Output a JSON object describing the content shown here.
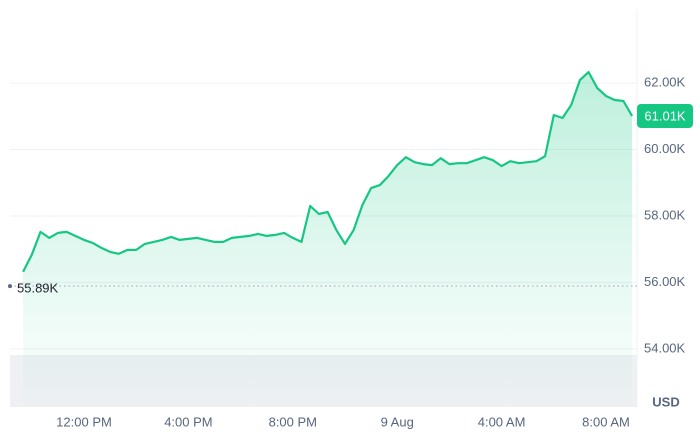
{
  "chart_data": {
    "type": "line",
    "color": "#16c784",
    "unit_label": "USD",
    "categories": [
      null,
      null,
      null,
      null,
      null,
      null,
      null,
      "12:00 PM",
      null,
      null,
      null,
      null,
      null,
      null,
      null,
      null,
      null,
      null,
      null,
      "4:00 PM",
      null,
      null,
      null,
      null,
      null,
      null,
      null,
      null,
      null,
      null,
      null,
      "8:00 PM",
      null,
      null,
      null,
      null,
      null,
      null,
      null,
      null,
      null,
      null,
      null,
      "9 Aug",
      null,
      null,
      null,
      null,
      null,
      null,
      null,
      null,
      null,
      null,
      null,
      "4:00 AM",
      null,
      null,
      null,
      null,
      null,
      null,
      null,
      null,
      null,
      null,
      null,
      "8:00 AM",
      null,
      null,
      null
    ],
    "values": [
      56.32,
      56.83,
      57.52,
      57.34,
      57.49,
      57.52,
      57.4,
      57.28,
      57.19,
      57.04,
      56.92,
      56.86,
      56.98,
      56.98,
      57.16,
      57.22,
      57.28,
      57.37,
      57.28,
      57.31,
      57.34,
      57.28,
      57.22,
      57.22,
      57.34,
      57.37,
      57.4,
      57.46,
      57.4,
      57.43,
      57.49,
      57.34,
      57.22,
      58.3,
      58.06,
      58.12,
      57.58,
      57.16,
      57.58,
      58.33,
      58.84,
      58.93,
      59.2,
      59.53,
      59.77,
      59.62,
      59.56,
      59.53,
      59.74,
      59.56,
      59.59,
      59.59,
      59.68,
      59.77,
      59.68,
      59.5,
      59.65,
      59.59,
      59.62,
      59.65,
      59.8,
      61.04,
      60.95,
      61.34,
      62.09,
      62.33,
      61.85,
      61.61,
      61.49,
      61.46,
      61.01
    ],
    "ylim": [
      52.25,
      64.2
    ],
    "yticks": [
      {
        "value": 54,
        "label": "54.00K"
      },
      {
        "value": 56,
        "label": "56.00K"
      },
      {
        "value": 58,
        "label": "58.00K"
      },
      {
        "value": 60,
        "label": "60.00K"
      },
      {
        "value": 62,
        "label": "62.00K"
      }
    ],
    "grid": true,
    "reference_line": {
      "value": 55.89,
      "label": "55.89K"
    },
    "current_price": {
      "value": 61.01,
      "label": "61.01K"
    }
  }
}
